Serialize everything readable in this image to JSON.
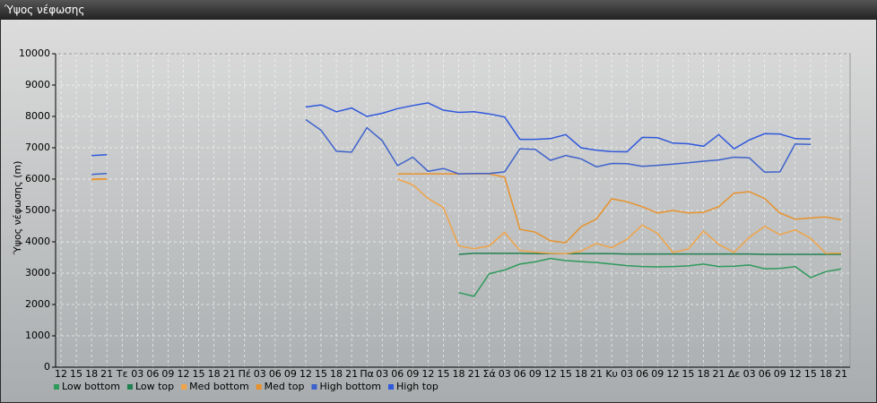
{
  "chart_data": {
    "type": "line",
    "title": "Ύψος νέφωσης",
    "y_label": "Ύψος νέφωσης (m)",
    "categories": [
      "12",
      "15",
      "18",
      "21",
      "Τε",
      "03",
      "06",
      "09",
      "12",
      "15",
      "18",
      "21",
      "Πέ",
      "03",
      "06",
      "09",
      "12",
      "15",
      "18",
      "21",
      "Πα",
      "03",
      "06",
      "09",
      "12",
      "15",
      "18",
      "21",
      "Σά",
      "03",
      "06",
      "09",
      "12",
      "15",
      "18",
      "21",
      "Κυ",
      "03",
      "06",
      "09",
      "12",
      "15",
      "18",
      "21",
      "Δε",
      "03",
      "06",
      "09",
      "12",
      "15",
      "18",
      "21"
    ],
    "ylim": [
      0,
      10000
    ],
    "yticks": [
      0,
      1000,
      2000,
      3000,
      4000,
      5000,
      6000,
      7000,
      8000,
      9000,
      10000
    ],
    "grid": true,
    "legend": "bottom",
    "series": [
      {
        "name": "Low bottom",
        "color": "#2e9a5c",
        "values": [
          null,
          null,
          null,
          null,
          null,
          null,
          null,
          null,
          null,
          null,
          null,
          null,
          null,
          null,
          null,
          null,
          null,
          null,
          null,
          null,
          null,
          null,
          null,
          null,
          null,
          null,
          2380,
          2260,
          2980,
          3100,
          3290,
          3360,
          3470,
          3400,
          3370,
          3340,
          3290,
          3240,
          3210,
          3200,
          3210,
          3230,
          3290,
          3210,
          3220,
          3260,
          3140,
          3150,
          3210,
          2860,
          3050,
          3130
        ]
      },
      {
        "name": "Low top",
        "color": "#1f8050",
        "values": [
          null,
          null,
          null,
          null,
          null,
          null,
          null,
          null,
          null,
          null,
          null,
          null,
          null,
          null,
          null,
          null,
          null,
          null,
          null,
          null,
          null,
          null,
          null,
          null,
          null,
          null,
          3600,
          3630,
          3630,
          3630,
          3630,
          3620,
          3620,
          3620,
          3620,
          3620,
          3620,
          3610,
          3610,
          3610,
          3610,
          3610,
          3610,
          3610,
          3610,
          3610,
          3600,
          3600,
          3600,
          3600,
          3600,
          3600
        ]
      },
      {
        "name": "Med bottom",
        "color": "#f0a448",
        "values": [
          null,
          null,
          5980,
          6000,
          null,
          null,
          null,
          null,
          null,
          null,
          null,
          null,
          null,
          null,
          null,
          null,
          null,
          null,
          null,
          null,
          null,
          null,
          6000,
          5820,
          5380,
          5090,
          3870,
          3780,
          3870,
          4300,
          3720,
          3670,
          3630,
          3620,
          3700,
          3950,
          3810,
          4080,
          4530,
          4270,
          3660,
          3770,
          4340,
          3920,
          3660,
          4140,
          4490,
          4230,
          4380,
          4120,
          3630,
          3640
        ]
      },
      {
        "name": "Med top",
        "color": "#e8922c",
        "values": [
          null,
          null,
          6000,
          6010,
          null,
          null,
          null,
          null,
          null,
          null,
          null,
          null,
          null,
          null,
          null,
          null,
          null,
          null,
          null,
          null,
          null,
          null,
          6170,
          6170,
          6170,
          6170,
          6170,
          6170,
          6170,
          6060,
          4400,
          4310,
          4030,
          3970,
          4480,
          4730,
          5370,
          5280,
          5120,
          4920,
          5000,
          4920,
          4940,
          5120,
          5550,
          5600,
          5380,
          4920,
          4720,
          4760,
          4790,
          4700
        ]
      },
      {
        "name": "High bottom",
        "color": "#3d62cc",
        "values": [
          null,
          null,
          6150,
          6180,
          null,
          null,
          null,
          null,
          null,
          null,
          null,
          null,
          null,
          null,
          null,
          null,
          7900,
          7560,
          6890,
          6860,
          7640,
          7230,
          6430,
          6700,
          6250,
          6340,
          6170,
          6180,
          6180,
          6230,
          6970,
          6950,
          6600,
          6750,
          6650,
          6390,
          6500,
          6490,
          6410,
          6440,
          6480,
          6520,
          6570,
          6610,
          6700,
          6680,
          6220,
          6230,
          7120,
          7110,
          null,
          null
        ]
      },
      {
        "name": "High top",
        "color": "#2f58dc",
        "values": [
          null,
          null,
          6750,
          6780,
          null,
          null,
          null,
          null,
          null,
          null,
          null,
          null,
          null,
          null,
          null,
          null,
          8300,
          8370,
          8150,
          8270,
          8000,
          8100,
          8250,
          8350,
          8430,
          8200,
          8130,
          8150,
          8080,
          7980,
          7270,
          7270,
          7290,
          7420,
          7000,
          6920,
          6880,
          6870,
          7330,
          7320,
          7150,
          7130,
          7050,
          7420,
          6970,
          7250,
          7450,
          7440,
          7290,
          7280,
          null,
          null
        ]
      }
    ]
  }
}
